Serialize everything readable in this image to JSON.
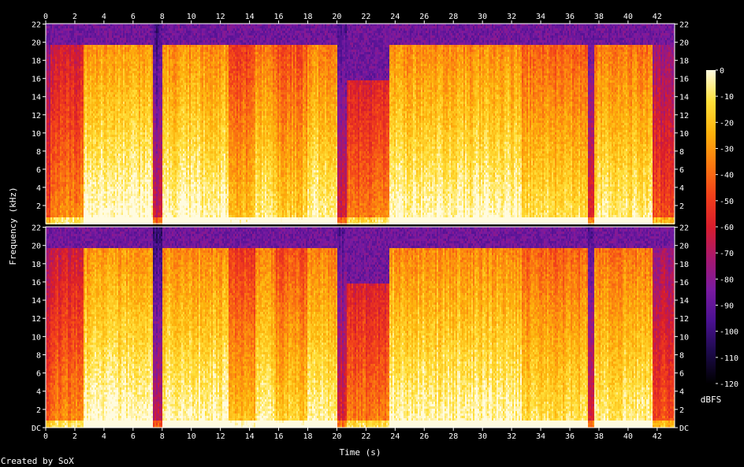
{
  "chart_data": {
    "type": "heatmap",
    "description_source": "SoX spectrogram",
    "channels": 2,
    "xlabel": "Time (s)",
    "ylabel": "Frequency (kHz)",
    "xlim": [
      0,
      43.2
    ],
    "ylim_khz": [
      0,
      22.05
    ],
    "x_ticks": [
      "0",
      "2",
      "4",
      "6",
      "8",
      "10",
      "12",
      "14",
      "16",
      "18",
      "20",
      "22",
      "24",
      "26",
      "28",
      "30",
      "32",
      "34",
      "36",
      "38",
      "40",
      "42"
    ],
    "y_ticks_top": [
      "22",
      "20",
      "18",
      "16",
      "14",
      "12",
      "10",
      "8",
      "6",
      "4",
      "2"
    ],
    "y_ticks_bottom": [
      "22",
      "20",
      "18",
      "16",
      "14",
      "12",
      "10",
      "8",
      "6",
      "4",
      "2",
      "DC"
    ],
    "colorbar": {
      "label": "dBFS",
      "ticks": [
        "0",
        "-10",
        "-20",
        "-30",
        "-40",
        "-50",
        "-60",
        "-70",
        "-80",
        "-90",
        "-100",
        "-110",
        "-120"
      ],
      "range": [
        -120,
        0
      ],
      "stops": [
        "#000000",
        "#1c0a4a",
        "#4a1192",
        "#7a1aa0",
        "#a8186e",
        "#d81d2c",
        "#f2401a",
        "#fb7a10",
        "#fdb20c",
        "#ffe03a",
        "#fffbe0"
      ]
    },
    "segments": [
      {
        "t0": 0.0,
        "t1": 0.3,
        "level": 0.4,
        "cut": 0.9
      },
      {
        "t0": 0.3,
        "t1": 2.5,
        "level": 0.52,
        "cut": 0.9
      },
      {
        "t0": 2.5,
        "t1": 7.3,
        "level": 0.8,
        "cut": 0.9
      },
      {
        "t0": 7.3,
        "t1": 8.0,
        "level": 0.25,
        "cut": 1.0
      },
      {
        "t0": 8.0,
        "t1": 12.5,
        "level": 0.78,
        "cut": 0.9
      },
      {
        "t0": 12.5,
        "t1": 14.4,
        "level": 0.62,
        "cut": 0.9
      },
      {
        "t0": 14.4,
        "t1": 15.8,
        "level": 0.74,
        "cut": 0.9
      },
      {
        "t0": 15.8,
        "t1": 17.9,
        "level": 0.66,
        "cut": 0.9
      },
      {
        "t0": 17.9,
        "t1": 20.0,
        "level": 0.76,
        "cut": 0.9
      },
      {
        "t0": 20.0,
        "t1": 20.6,
        "level": 0.3,
        "cut": 1.0
      },
      {
        "t0": 20.6,
        "t1": 23.6,
        "level": 0.5,
        "cut": 0.72
      },
      {
        "t0": 23.6,
        "t1": 32.6,
        "level": 0.78,
        "cut": 0.9
      },
      {
        "t0": 32.6,
        "t1": 37.2,
        "level": 0.7,
        "cut": 0.9
      },
      {
        "t0": 37.2,
        "t1": 37.6,
        "level": 0.3,
        "cut": 1.0
      },
      {
        "t0": 37.6,
        "t1": 41.6,
        "level": 0.74,
        "cut": 0.9
      },
      {
        "t0": 41.6,
        "t1": 43.2,
        "level": 0.42,
        "cut": 0.9
      }
    ]
  },
  "credit": "Created by SoX"
}
